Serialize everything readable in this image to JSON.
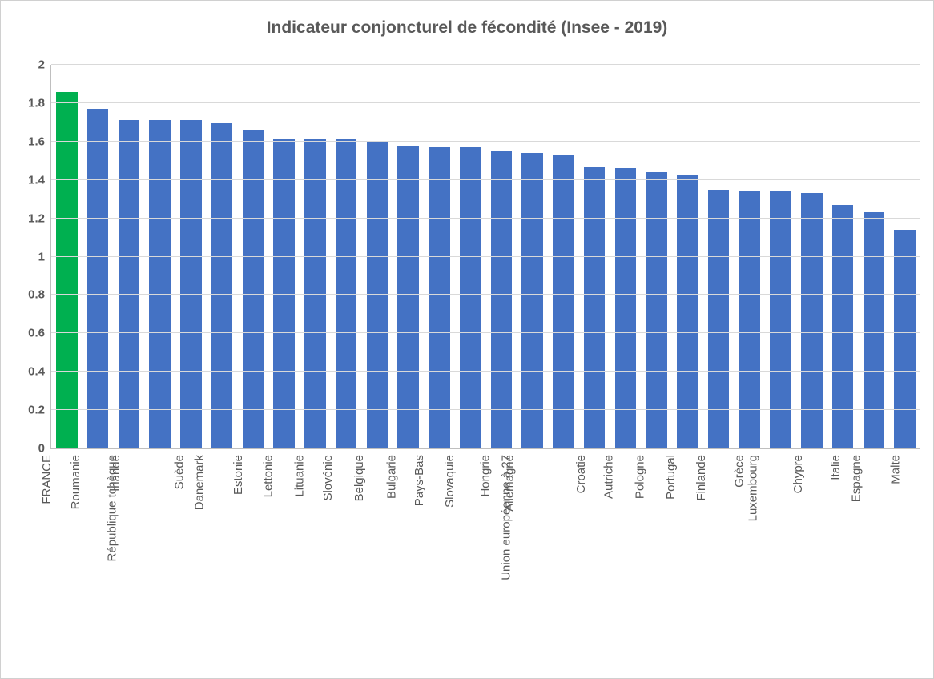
{
  "chart": {
    "type": "bar",
    "title": "Indicateur conjoncturel de fécondité (Insee - 2019)",
    "title_fontsize": 21,
    "title_color": "#595959",
    "title_weight": "bold",
    "background_color": "#ffffff",
    "border_color": "#d0d0d0",
    "y_axis": {
      "min": 0,
      "max": 2,
      "tick_step": 0.2,
      "ticks": [
        0,
        0.2,
        0.4,
        0.6,
        0.8,
        1,
        1.2,
        1.4,
        1.6,
        1.8,
        2
      ],
      "tick_labels": [
        "0",
        "0.2",
        "0.4",
        "0.6",
        "0.8",
        "1",
        "1.2",
        "1.4",
        "1.6",
        "1.8",
        "2"
      ],
      "label_fontsize": 15,
      "label_color": "#595959",
      "label_weight": "bold",
      "gridline_color": "#d9d9d9",
      "axis_line_color": "#bfbfbf"
    },
    "x_axis": {
      "label_fontsize": 15,
      "label_color": "#595959",
      "rotation_deg": -90
    },
    "bar_width_ratio": 0.68,
    "default_bar_color": "#4472c4",
    "highlight_bar_color": "#00b050",
    "categories": [
      {
        "label": "FRANCE",
        "value": 1.86,
        "color": "#00b050"
      },
      {
        "label": "Roumanie",
        "value": 1.77,
        "color": "#4472c4"
      },
      {
        "label": "Irlande",
        "value": 1.71,
        "color": "#4472c4"
      },
      {
        "label": "République tchèque",
        "value": 1.71,
        "color": "#4472c4"
      },
      {
        "label": "Suède",
        "value": 1.71,
        "color": "#4472c4"
      },
      {
        "label": "Danemark",
        "value": 1.7,
        "color": "#4472c4"
      },
      {
        "label": "Estonie",
        "value": 1.66,
        "color": "#4472c4"
      },
      {
        "label": "Lettonie",
        "value": 1.61,
        "color": "#4472c4"
      },
      {
        "label": "Lituanie",
        "value": 1.61,
        "color": "#4472c4"
      },
      {
        "label": "Slovénie",
        "value": 1.61,
        "color": "#4472c4"
      },
      {
        "label": "Belgique",
        "value": 1.6,
        "color": "#4472c4"
      },
      {
        "label": "Bulgarie",
        "value": 1.58,
        "color": "#4472c4"
      },
      {
        "label": "Pays-Bas",
        "value": 1.57,
        "color": "#4472c4"
      },
      {
        "label": "Slovaquie",
        "value": 1.57,
        "color": "#4472c4"
      },
      {
        "label": "Hongrie",
        "value": 1.55,
        "color": "#4472c4"
      },
      {
        "label": "Allemagne",
        "value": 1.54,
        "color": "#4472c4"
      },
      {
        "label": "Union européenne à 27",
        "value": 1.53,
        "color": "#4472c4"
      },
      {
        "label": "Croatie",
        "value": 1.47,
        "color": "#4472c4"
      },
      {
        "label": "Autriche",
        "value": 1.46,
        "color": "#4472c4"
      },
      {
        "label": "Pologne",
        "value": 1.44,
        "color": "#4472c4"
      },
      {
        "label": "Portugal",
        "value": 1.43,
        "color": "#4472c4"
      },
      {
        "label": "Finlande",
        "value": 1.35,
        "color": "#4472c4"
      },
      {
        "label": "Grèce",
        "value": 1.34,
        "color": "#4472c4"
      },
      {
        "label": "Luxembourg",
        "value": 1.34,
        "color": "#4472c4"
      },
      {
        "label": "Chypre",
        "value": 1.33,
        "color": "#4472c4"
      },
      {
        "label": "Italie",
        "value": 1.27,
        "color": "#4472c4"
      },
      {
        "label": "Espagne",
        "value": 1.23,
        "color": "#4472c4"
      },
      {
        "label": "Malte",
        "value": 1.14,
        "color": "#4472c4"
      }
    ]
  }
}
